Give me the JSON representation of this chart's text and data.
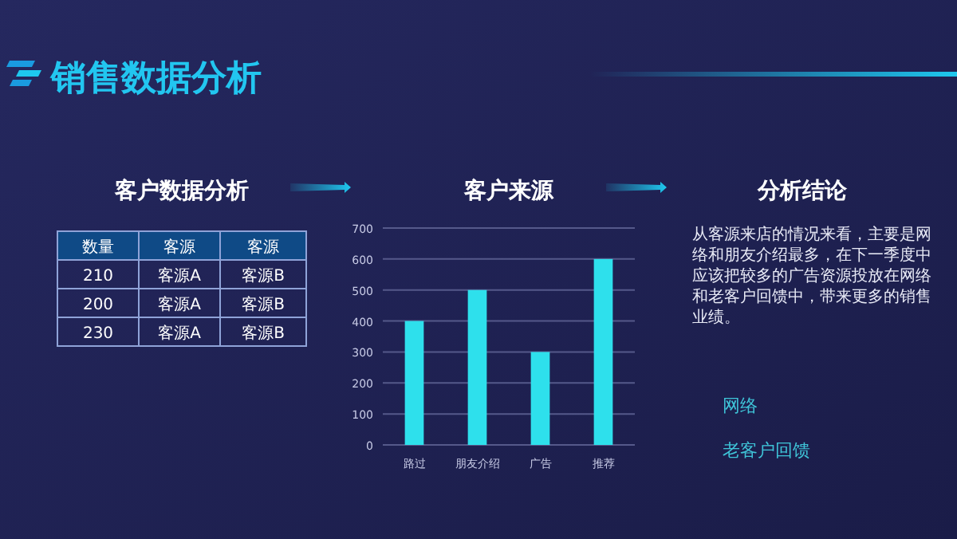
{
  "chart_data": [
    {
      "type": "other",
      "title": "销售数据分析"
    },
    {
      "type": "other",
      "title": "客户数据分析",
      "categories": [
        "数量",
        "客源",
        "客源"
      ],
      "cell_labels": [
        [
          "210",
          "客源A",
          "客源B"
        ],
        [
          "200",
          "客源A",
          "客源B"
        ],
        [
          "230",
          "客源A",
          "客源B"
        ]
      ]
    },
    {
      "type": "bar",
      "title": "客户来源",
      "categories": [
        "路过",
        "朋友介绍",
        "广告",
        "推荐"
      ],
      "values": [
        400,
        500,
        300,
        600
      ],
      "color": "#2ee0ec",
      "ylim": [
        0,
        700
      ],
      "yticks": [
        0,
        100,
        200,
        300,
        400,
        500,
        600,
        700
      ],
      "grid": "y"
    },
    {
      "type": "other",
      "title": "分析结论",
      "annotations": [
        "从客源来店的情况来看，主要是网络和朋友介绍最多，在下一季度中应该把较多的广告资源投放在网络和老客户回馈中，带来更多的销售业绩。",
        "网络",
        "老客户回馈"
      ]
    }
  ]
}
